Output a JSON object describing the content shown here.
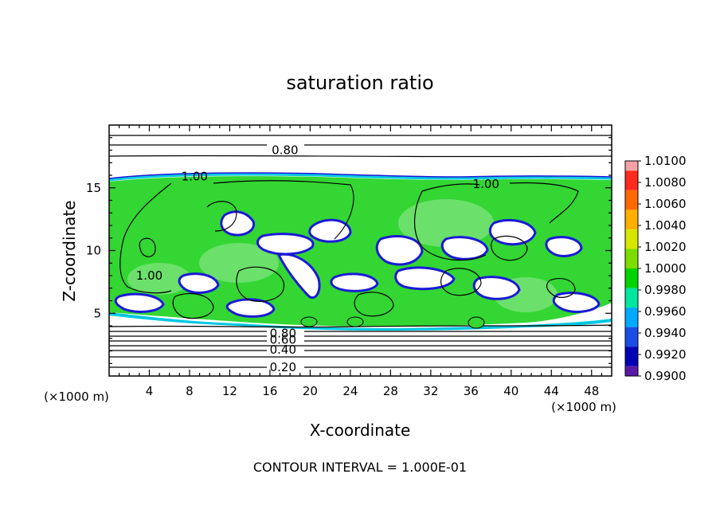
{
  "chart_data": {
    "type": "heatmap",
    "title": "saturation ratio",
    "xlabel": "X-coordinate",
    "ylabel": "Z-coordinate",
    "x_unit_label": "(×1000 m)",
    "z_unit_label": "(×1000 m)",
    "xlim": [
      0,
      50
    ],
    "ylim": [
      0,
      20
    ],
    "x_ticks": [
      "4",
      "8",
      "12",
      "16",
      "20",
      "24",
      "28",
      "32",
      "36",
      "40",
      "44",
      "48"
    ],
    "y_ticks": [
      "5",
      "10",
      "15"
    ],
    "contour_interval_text": "CONTOUR INTERVAL = 1.000E-01",
    "contour_labels": [
      {
        "text": "0.80",
        "x": 17.5,
        "z": 18.0
      },
      {
        "text": "1.00",
        "x": 8.5,
        "z": 15.9
      },
      {
        "text": "1.00",
        "x": 37.5,
        "z": 15.3
      },
      {
        "text": "1.00",
        "x": 4.0,
        "z": 8.0
      },
      {
        "text": "0.80",
        "x": 17.3,
        "z": 3.4
      },
      {
        "text": "0.60",
        "x": 17.3,
        "z": 2.9
      },
      {
        "text": "0.40",
        "x": 17.3,
        "z": 2.1
      },
      {
        "text": "0.20",
        "x": 17.3,
        "z": 0.7
      }
    ],
    "colorbar": {
      "levels": [
        "1.0100",
        "1.0080",
        "1.0060",
        "1.0040",
        "1.0020",
        "1.0000",
        "0.9980",
        "0.9960",
        "0.9940",
        "0.9920",
        "0.9900"
      ],
      "colors": [
        "#f4a2a6",
        "#ff2a1e",
        "#ff6a00",
        "#ffb000",
        "#d6e600",
        "#7ddc00",
        "#00d400",
        "#00e8a0",
        "#00aaff",
        "#1c4de6",
        "#0000b4",
        "#5a1aa8"
      ]
    },
    "colors": {
      "saturated": "#33d633",
      "near_saturated": "#5fe05a",
      "dry_edge": "#00c8e0",
      "subsaturated_deep": "#1a1ad6",
      "unsaturated": "#ffffff"
    }
  }
}
